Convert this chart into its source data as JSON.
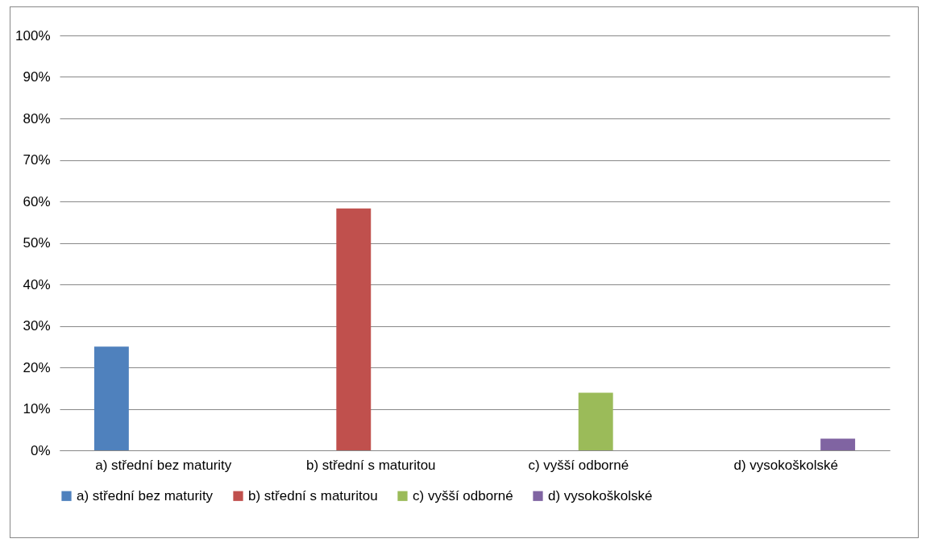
{
  "chart_data": {
    "type": "bar",
    "categories": [
      "a) střední bez maturity",
      "b) střední s maturitou",
      "c) vyšší odborné",
      "d) vysokoškolské"
    ],
    "series": [
      {
        "name": "a) střední bez maturity",
        "color": "#4f81bd",
        "values": [
          25,
          null,
          null,
          null
        ]
      },
      {
        "name": "b) střední s maturitou",
        "color": "#c0504d",
        "values": [
          null,
          58.3,
          null,
          null
        ]
      },
      {
        "name": "c) vyšší odborné",
        "color": "#9bbb59",
        "values": [
          null,
          null,
          13.9,
          null
        ]
      },
      {
        "name": "d) vysokoškolské",
        "color": "#8064a2",
        "values": [
          null,
          null,
          null,
          2.8
        ]
      }
    ],
    "ylim": [
      0,
      100
    ],
    "yticks": [
      {
        "value": 0,
        "label": "0%"
      },
      {
        "value": 10,
        "label": "10%"
      },
      {
        "value": 20,
        "label": "20%"
      },
      {
        "value": 30,
        "label": "30%"
      },
      {
        "value": 40,
        "label": "40%"
      },
      {
        "value": 50,
        "label": "50%"
      },
      {
        "value": 60,
        "label": "60%"
      },
      {
        "value": 70,
        "label": "70%"
      },
      {
        "value": 80,
        "label": "80%"
      },
      {
        "value": 90,
        "label": "90%"
      },
      {
        "value": 100,
        "label": "100%"
      }
    ],
    "grid": "y",
    "legend": "bottom"
  }
}
